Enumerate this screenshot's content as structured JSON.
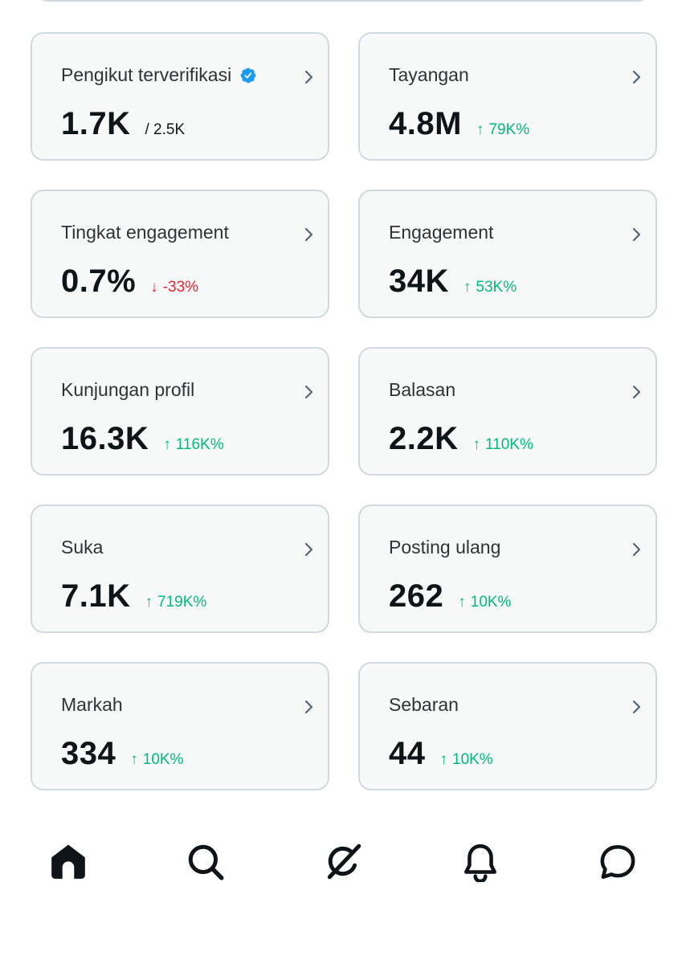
{
  "colors": {
    "card_bg": "#f7f9f9",
    "card_border": "#cfd9de",
    "up": "#00ba7c",
    "down": "#f4212e",
    "verified": "#1d9bf0",
    "text": "#0f1419"
  },
  "metrics": [
    {
      "title": "Pengikut terverifikasi",
      "verified": true,
      "value": "1.7K",
      "sub": "/ 2.5K",
      "trend": "neutral",
      "arrow": ""
    },
    {
      "title": "Tayangan",
      "verified": false,
      "value": "4.8M",
      "sub": "79K%",
      "trend": "up",
      "arrow": "↑"
    },
    {
      "title": "Tingkat engagement",
      "verified": false,
      "value": "0.7%",
      "sub": "-33%",
      "trend": "down",
      "arrow": "↓"
    },
    {
      "title": "Engagement",
      "verified": false,
      "value": "34K",
      "sub": "53K%",
      "trend": "up",
      "arrow": "↑"
    },
    {
      "title": "Kunjungan profil",
      "verified": false,
      "value": "16.3K",
      "sub": "116K%",
      "trend": "up",
      "arrow": "↑"
    },
    {
      "title": "Balasan",
      "verified": false,
      "value": "2.2K",
      "sub": "110K%",
      "trend": "up",
      "arrow": "↑"
    },
    {
      "title": "Suka",
      "verified": false,
      "value": "7.1K",
      "sub": "719K%",
      "trend": "up",
      "arrow": "↑"
    },
    {
      "title": "Posting ulang",
      "verified": false,
      "value": "262",
      "sub": "10K%",
      "trend": "up",
      "arrow": "↑"
    },
    {
      "title": "Markah",
      "verified": false,
      "value": "334",
      "sub": "10K%",
      "trend": "up",
      "arrow": "↑"
    },
    {
      "title": "Sebaran",
      "verified": false,
      "value": "44",
      "sub": "10K%",
      "trend": "up",
      "arrow": "↑"
    }
  ],
  "nav": [
    {
      "icon": "home-icon",
      "active": true
    },
    {
      "icon": "search-icon",
      "active": false
    },
    {
      "icon": "grok-icon",
      "active": false
    },
    {
      "icon": "bell-icon",
      "active": false
    },
    {
      "icon": "message-icon",
      "active": false
    }
  ]
}
